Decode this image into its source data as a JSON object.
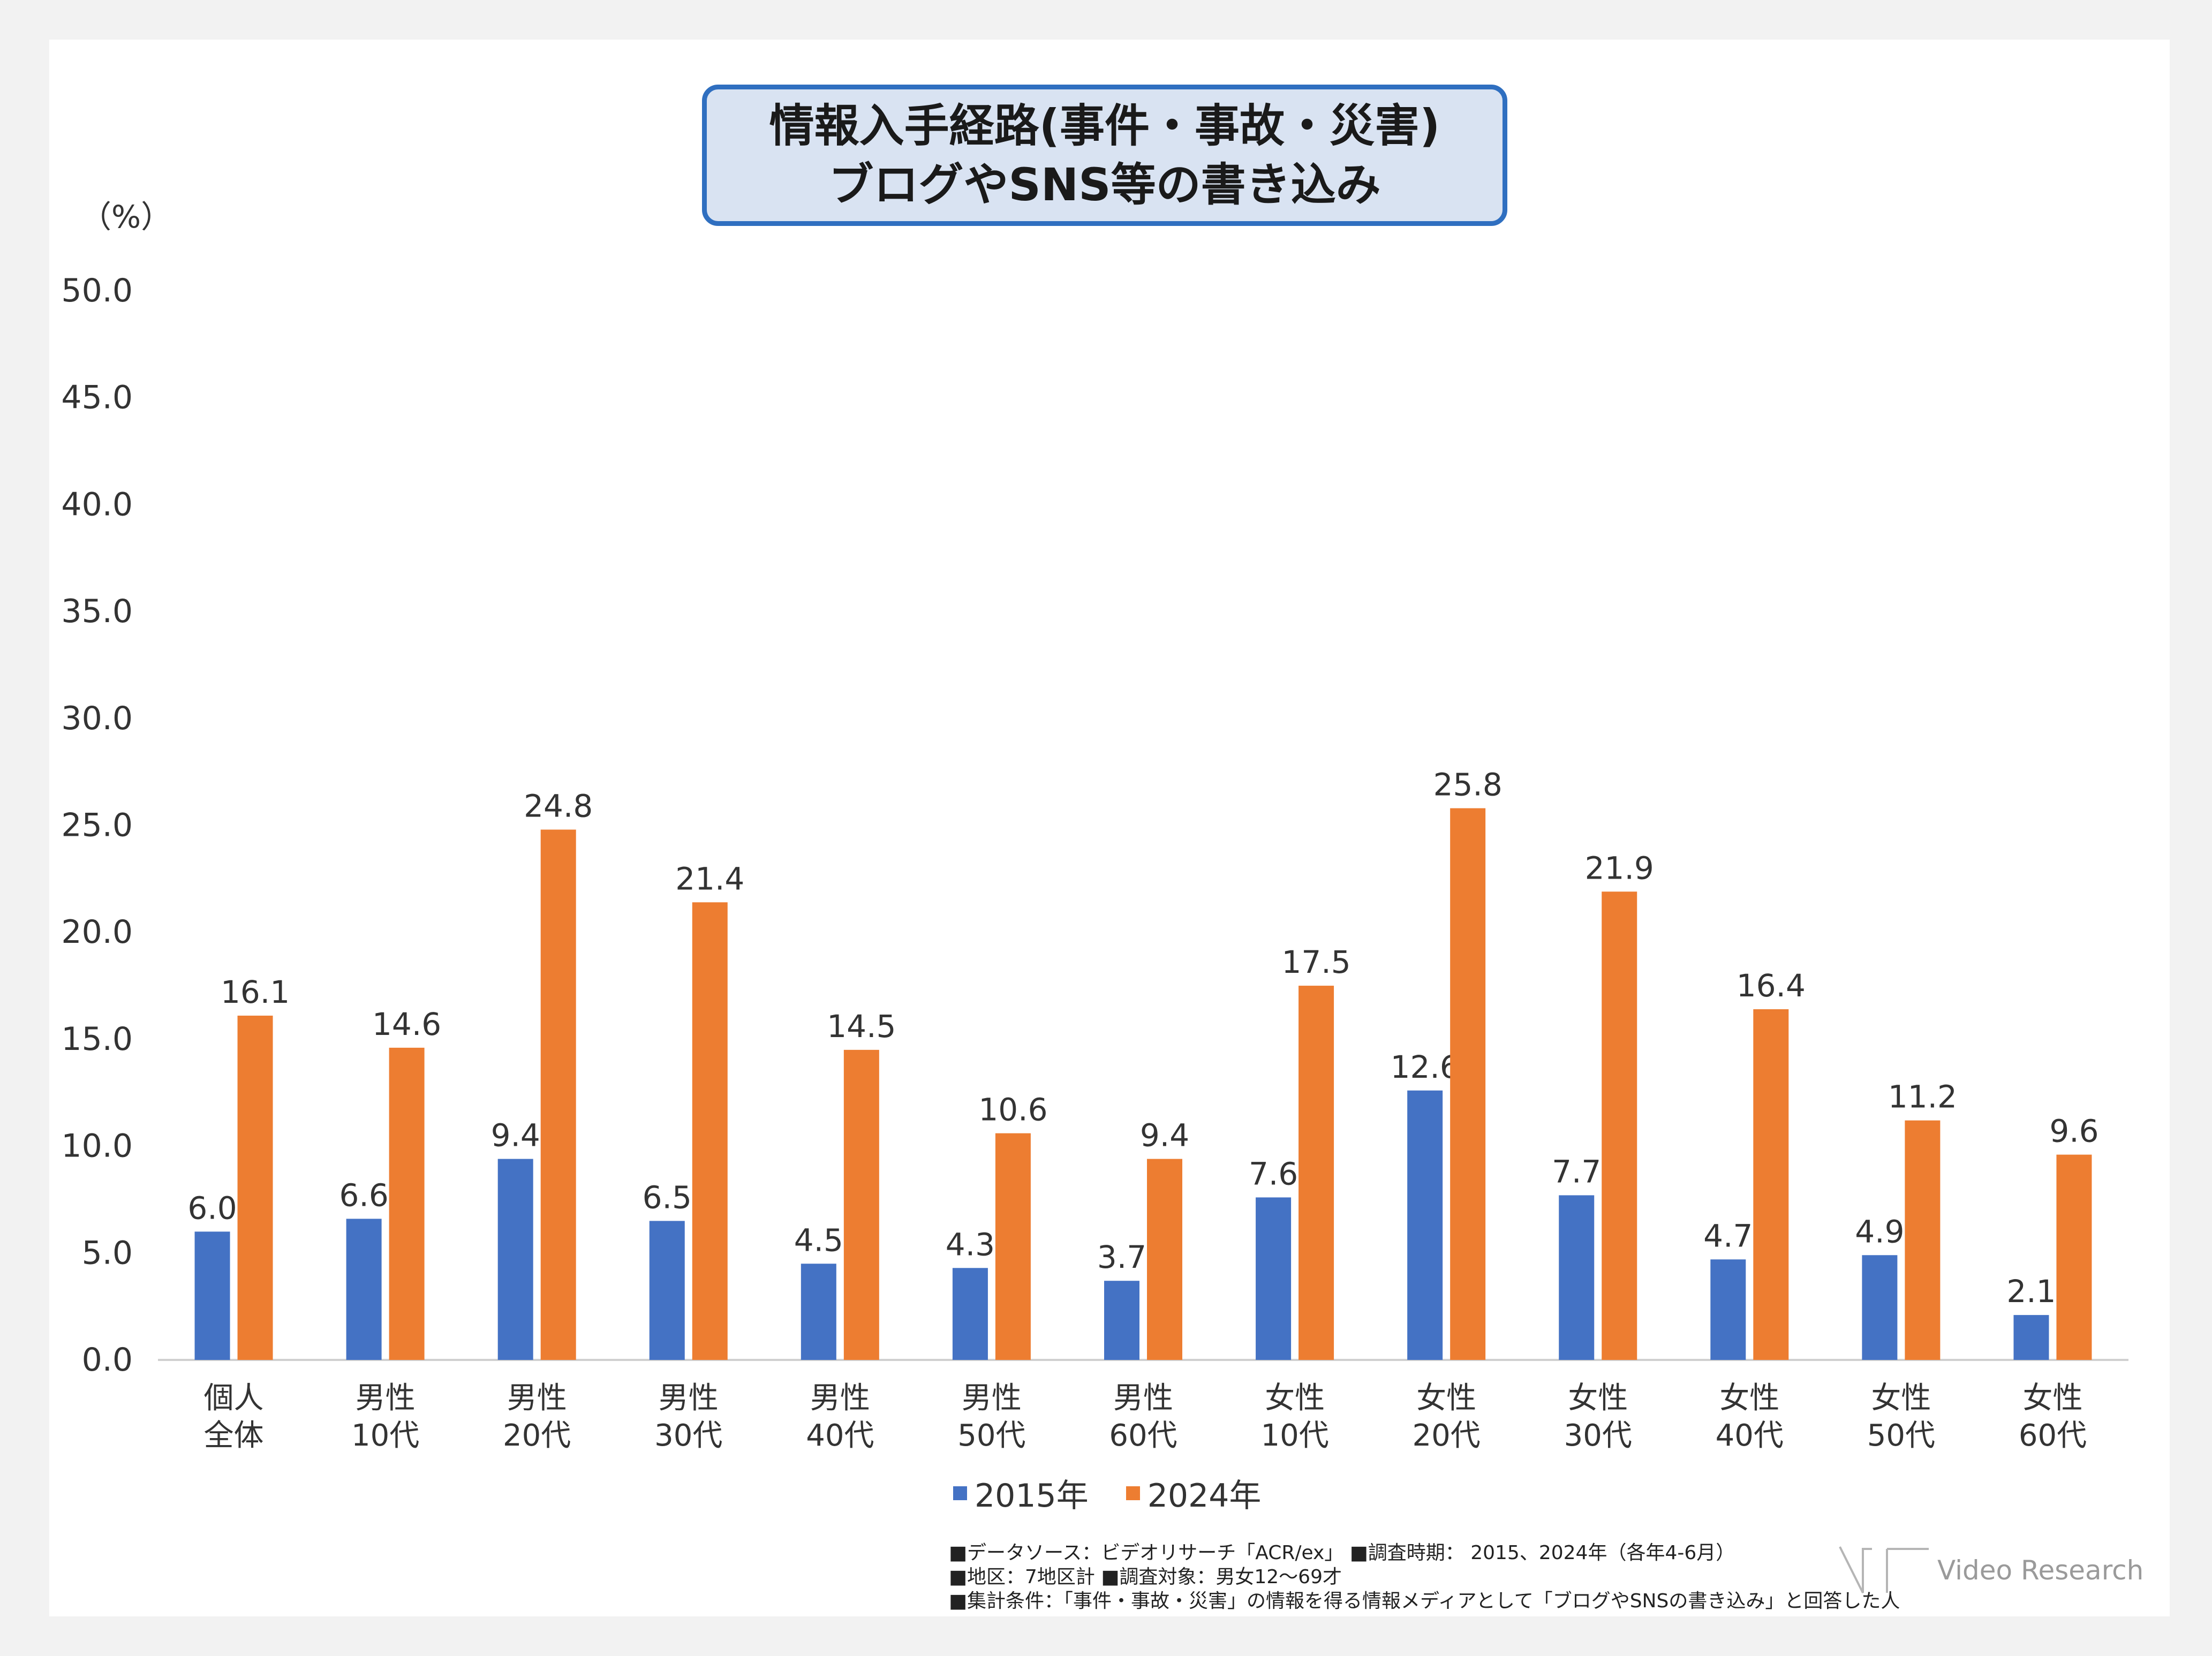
{
  "chart_data": {
    "type": "bar",
    "title": "情報入手経路(事件・事故・災害)",
    "subtitle": "ブログやSNS等の書き込み",
    "ylabel": "（%）",
    "ylim": [
      0,
      50
    ],
    "yticks": [
      "50.0",
      "45.0",
      "40.0",
      "35.0",
      "30.0",
      "25.0",
      "20.0",
      "15.0",
      "10.0",
      "5.0",
      "0.0"
    ],
    "categories": [
      [
        "個人",
        "全体"
      ],
      [
        "男性",
        "10代"
      ],
      [
        "男性",
        "20代"
      ],
      [
        "男性",
        "30代"
      ],
      [
        "男性",
        "40代"
      ],
      [
        "男性",
        "50代"
      ],
      [
        "男性",
        "60代"
      ],
      [
        "女性",
        "10代"
      ],
      [
        "女性",
        "20代"
      ],
      [
        "女性",
        "30代"
      ],
      [
        "女性",
        "40代"
      ],
      [
        "女性",
        "50代"
      ],
      [
        "女性",
        "60代"
      ]
    ],
    "series": [
      {
        "name": "2015年",
        "color": "#4472c4",
        "values": [
          6.0,
          6.6,
          9.4,
          6.5,
          4.5,
          4.3,
          3.7,
          7.6,
          12.6,
          7.7,
          4.7,
          4.9,
          2.1
        ],
        "labels": [
          "6.0",
          "6.6",
          "9.4",
          "6.5",
          "4.5",
          "4.3",
          "3.7",
          "7.6",
          "12.6",
          "7.7",
          "4.7",
          "4.9",
          "2.1"
        ]
      },
      {
        "name": "2024年",
        "color": "#ed7d31",
        "values": [
          16.1,
          14.6,
          24.8,
          21.4,
          14.5,
          10.6,
          9.4,
          17.5,
          25.8,
          21.9,
          16.4,
          11.2,
          9.6
        ],
        "labels": [
          "16.1",
          "14.6",
          "24.8",
          "21.4",
          "14.5",
          "10.6",
          "9.4",
          "17.5",
          "25.8",
          "21.9",
          "16.4",
          "11.2",
          "9.6"
        ]
      }
    ],
    "grid": false,
    "legend": "bottom"
  },
  "notes": [
    "■データソース：ビデオリサーチ「ACR/ex」 ■調査時期： 2015、2024年（各年4-6月）",
    "■地区：7地区計 ■調査対象：男女12～69才",
    "■集計条件：「事件・事故・災害」の情報を得る情報メディアとして「ブログやSNSの書き込み」と回答した人"
  ],
  "logo": {
    "text": "Video Research"
  }
}
